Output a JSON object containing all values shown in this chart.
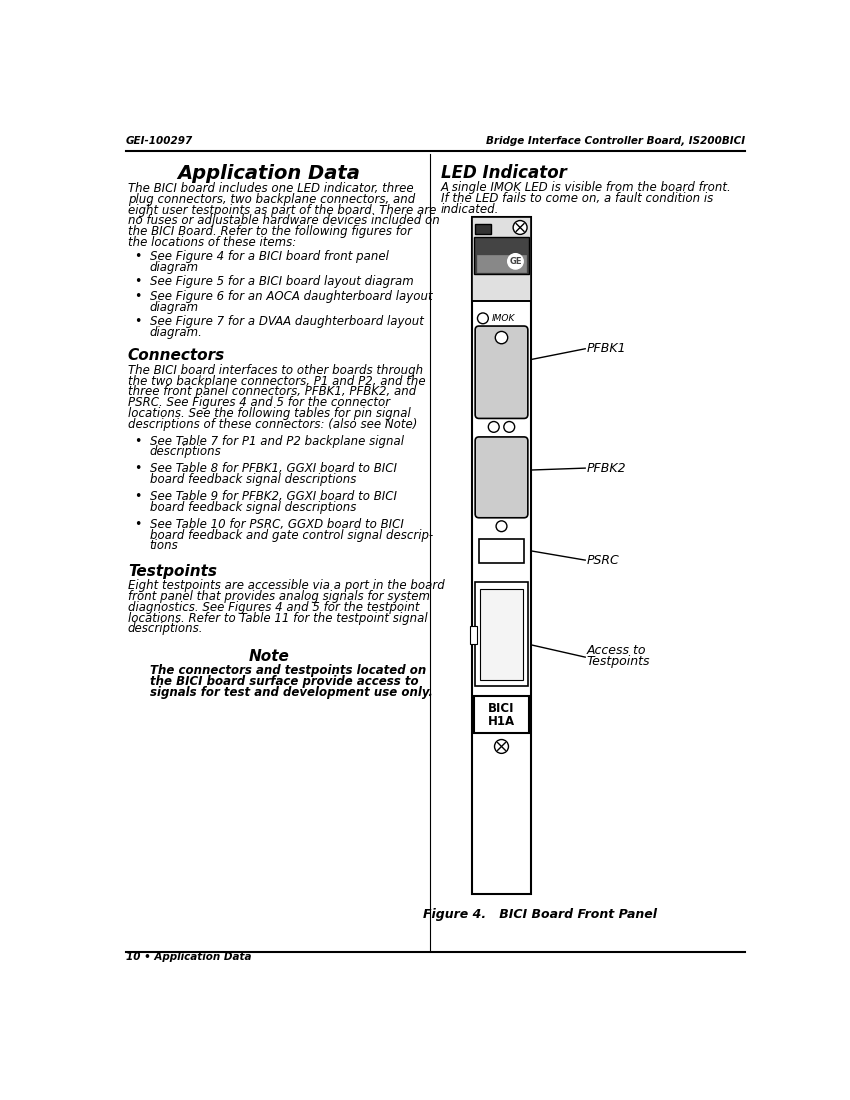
{
  "header_left": "GEI-100297",
  "header_right": "Bridge Interface Controller Board, IS200BICI",
  "footer_text": "10 • Application Data",
  "page_title_left": "Application Data",
  "page_title_right": "LED Indicator",
  "left_col": {
    "intro_lines": [
      "The BICI board includes one LED indicator, three",
      "plug connectors, two backplane connectors, and",
      "eight user testpoints as part of the board. There are",
      "no fuses or adjustable hardware devices included on",
      "the BICI Board. Refer to the following figures for",
      "the locations of these items:"
    ],
    "bullets1": [
      [
        "See Figure 4 for a BICI board front panel",
        "diagram"
      ],
      [
        "See Figure 5 for a BICI board layout diagram"
      ],
      [
        "See Figure 6 for an AOCA daughterboard layout",
        "diagram"
      ],
      [
        "See Figure 7 for a DVAA daughterboard layout",
        "diagram."
      ]
    ],
    "section2_title": "Connectors",
    "sec2_lines": [
      "The BICI board interfaces to other boards through",
      "the two backplane connectors, P1 and P2, and the",
      "three front panel connectors, PFBK1, PFBK2, and",
      "PSRC. See Figures 4 and 5 for the connector",
      "locations. See the following tables for pin signal",
      "descriptions of these connectors: (also see Note)"
    ],
    "bullets2": [
      [
        "See Table 7 for P1 and P2 backplane signal",
        "descriptions"
      ],
      [
        "See Table 8 for PFBK1, GGXI board to BICI",
        "board feedback signal descriptions"
      ],
      [
        "See Table 9 for PFBK2, GGXI board to BICI",
        "board feedback signal descriptions"
      ],
      [
        "See Table 10 for PSRC, GGXD board to BICI",
        "board feedback and gate control signal descrip-",
        "tions"
      ]
    ],
    "section3_title": "Testpoints",
    "sec3_lines": [
      "Eight testpoints are accessible via a port in the board",
      "front panel that provides analog signals for system",
      "diagnostics. See Figures 4 and 5 for the testpoint",
      "locations. Refer to Table 11 for the testpoint signal",
      "descriptions."
    ],
    "note_title": "Note",
    "note_lines": [
      "The connectors and testpoints located on",
      "the BICI board surface provide access to",
      "signals for test and development use only."
    ]
  },
  "right_col": {
    "led_lines": [
      "A single IMOK LED is visible from the board front.",
      "If the LED fails to come on, a fault condition is",
      "indicated."
    ],
    "figure_caption": "Figure 4.   BICI Board Front Panel"
  },
  "bg_color": "#ffffff",
  "text_color": "#000000"
}
